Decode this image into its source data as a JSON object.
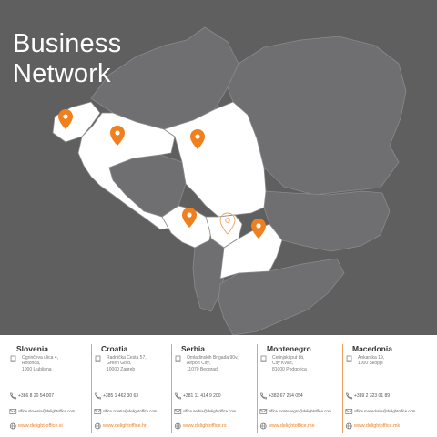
{
  "title": {
    "line1": "Business",
    "line2": "Network"
  },
  "colors": {
    "background": "#5f5f60",
    "land": "#6f6f71",
    "highlight": "#ffffff",
    "accent": "#f07f1e",
    "border": "#8a8a8c"
  },
  "markers": [
    {
      "country": "Slovenia",
      "style": "filled"
    },
    {
      "country": "Croatia",
      "style": "filled"
    },
    {
      "country": "Serbia",
      "style": "filled"
    },
    {
      "country": "Montenegro",
      "style": "filled"
    },
    {
      "country": "Kosovo",
      "style": "outline"
    },
    {
      "country": "Macedonia",
      "style": "filled"
    }
  ],
  "offices": [
    {
      "country": "Slovenia",
      "address": [
        "Ogrinčeva ulica 4,",
        "Rotonda,",
        "1000 Ljubljana"
      ],
      "phone": "+386 8 20 54 007",
      "email": "office.slovenia@delightoffice.com",
      "web": "www.delight-office.si"
    },
    {
      "country": "Croatia",
      "address": [
        "Radnička Cesta 57,",
        "Green Gold,",
        "10000 Zagreb"
      ],
      "phone": "+385 1 462 30 63",
      "email": "office.croatia@delightoffice.com",
      "web": "www.delightoffice.hr"
    },
    {
      "country": "Serbia",
      "address": [
        "Omladinskih Brigada 90v,",
        "Airport City,",
        "11070 Beograd"
      ],
      "phone": "+381 11 414 9 200",
      "email": "office.serbia@delightoffice.com",
      "web": "www.delightoffice.rs"
    },
    {
      "country": "Montenegro",
      "address": [
        "Cetinjski put bb,",
        "City Kvart,",
        "81000 Podgorica"
      ],
      "phone": "+382 67 254 054",
      "email": "office.montenegro@delightoffice.com",
      "web": "www.delightoffice.me"
    },
    {
      "country": "Macedonia",
      "address": [
        "Ankarska 19,",
        "1000 Skopje"
      ],
      "phone": "+389 2 323 01 89",
      "email": "office.macedonia@delightoffice.com",
      "web": "www.delightoffice.mk"
    }
  ]
}
